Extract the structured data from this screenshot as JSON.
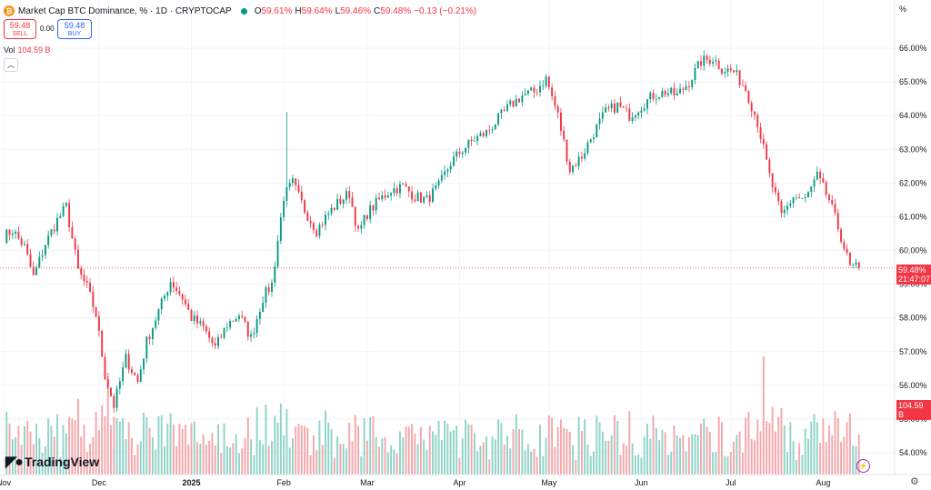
{
  "header": {
    "title": "Market Cap BTC Dominance, % · 1D · CRYPTOCAP",
    "o_key": "O",
    "o_val": "59.61%",
    "h_key": "H",
    "h_val": "59.64%",
    "l_key": "L",
    "l_val": "59.46%",
    "c_key": "C",
    "c_val": "59.48%",
    "change": "−0.13 (−0.21%)"
  },
  "trade": {
    "sell_price": "59.48",
    "sell_label": "SELL",
    "spread": "0.00",
    "buy_price": "59.48",
    "buy_label": "BUY"
  },
  "volume": {
    "label": "Vol",
    "value": "104.59 B"
  },
  "axis": {
    "unit": "%"
  },
  "price_tag": {
    "price": "59.48%",
    "countdown": "21:47:07"
  },
  "volume_tag": "104.59 B",
  "branding": "TradingView",
  "colors": {
    "up": "#089981",
    "down": "#f23645",
    "up_vol": "#8fd3c6",
    "down_vol": "#f5a6ab"
  },
  "chart_data": {
    "type": "candlestick",
    "y_axis": {
      "ticks": [
        "66.00%",
        "65.00%",
        "64.00%",
        "63.00%",
        "62.00%",
        "61.00%",
        "60.00%",
        "59.00%",
        "58.00%",
        "57.00%",
        "56.00%",
        "55.00%",
        "54.00%"
      ],
      "range": [
        53.5,
        66.6
      ],
      "unit": "%"
    },
    "x_axis": {
      "ticks": [
        "Nov",
        "Dec",
        "2025",
        "Feb",
        "Mar",
        "Apr",
        "May",
        "Jun",
        "Jul",
        "Aug"
      ]
    },
    "last_price": 59.48,
    "series_close": [
      [
        "Nov 1",
        60.4
      ],
      [
        "Nov 4",
        60.6
      ],
      [
        "Nov 8",
        60.1
      ],
      [
        "Nov 11",
        59.2
      ],
      [
        "Nov 15",
        60.2
      ],
      [
        "Nov 19",
        60.9
      ],
      [
        "Nov 22",
        61.3
      ],
      [
        "Nov 26",
        59.4
      ],
      [
        "Nov 29",
        58.9
      ],
      [
        "Dec 2",
        58.1
      ],
      [
        "Dec 5",
        56.3
      ],
      [
        "Dec 8",
        55.4
      ],
      [
        "Dec 12",
        56.8
      ],
      [
        "Dec 16",
        56.1
      ],
      [
        "Dec 19",
        57.3
      ],
      [
        "Dec 23",
        58.2
      ],
      [
        "Dec 27",
        59.1
      ],
      [
        "Dec 31",
        58.6
      ],
      [
        "Jan 3",
        58.0
      ],
      [
        "Jan 7",
        57.7
      ],
      [
        "Jan 11",
        57.1
      ],
      [
        "Jan 15",
        57.8
      ],
      [
        "Jan 19",
        58.1
      ],
      [
        "Jan 23",
        57.4
      ],
      [
        "Jan 27",
        58.6
      ],
      [
        "Jan 30",
        59.0
      ],
      [
        "Feb 3",
        61.6
      ],
      [
        "Feb 6",
        62.0
      ],
      [
        "Feb 10",
        61.2
      ],
      [
        "Feb 14",
        60.6
      ],
      [
        "Feb 18",
        61.1
      ],
      [
        "Feb 21",
        61.4
      ],
      [
        "Feb 25",
        61.7
      ],
      [
        "Feb 28",
        60.5
      ],
      [
        "Mar 3",
        61.1
      ],
      [
        "Mar 7",
        61.5
      ],
      [
        "Mar 11",
        61.8
      ],
      [
        "Mar 15",
        61.9
      ],
      [
        "Mar 19",
        61.6
      ],
      [
        "Mar 23",
        61.5
      ],
      [
        "Mar 27",
        61.9
      ],
      [
        "Mar 31",
        62.6
      ],
      [
        "Apr 4",
        63.0
      ],
      [
        "Apr 8",
        63.3
      ],
      [
        "Apr 12",
        63.5
      ],
      [
        "Apr 16",
        63.9
      ],
      [
        "Apr 20",
        64.3
      ],
      [
        "Apr 24",
        64.6
      ],
      [
        "Apr 28",
        64.7
      ],
      [
        "May 2",
        65.1
      ],
      [
        "May 6",
        64.0
      ],
      [
        "May 10",
        62.4
      ],
      [
        "May 14",
        62.8
      ],
      [
        "May 18",
        63.5
      ],
      [
        "May 22",
        64.1
      ],
      [
        "May 26",
        64.3
      ],
      [
        "May 30",
        64.0
      ],
      [
        "Jun 3",
        64.3
      ],
      [
        "Jun 7",
        64.6
      ],
      [
        "Jun 11",
        64.7
      ],
      [
        "Jun 15",
        64.6
      ],
      [
        "Jun 19",
        65.0
      ],
      [
        "Jun 23",
        65.6
      ],
      [
        "Jun 27",
        65.7
      ],
      [
        "Jun 30",
        65.4
      ],
      [
        "Jul 4",
        65.3
      ],
      [
        "Jul 8",
        64.8
      ],
      [
        "Jul 12",
        63.8
      ],
      [
        "Jul 16",
        62.2
      ],
      [
        "Jul 20",
        61.0
      ],
      [
        "Jul 24",
        61.6
      ],
      [
        "Jul 28",
        61.5
      ],
      [
        "Aug 1",
        62.2
      ],
      [
        "Aug 5",
        61.5
      ],
      [
        "Aug 9",
        60.4
      ],
      [
        "Aug 12",
        59.5
      ],
      [
        "Aug 15",
        59.48
      ]
    ]
  }
}
